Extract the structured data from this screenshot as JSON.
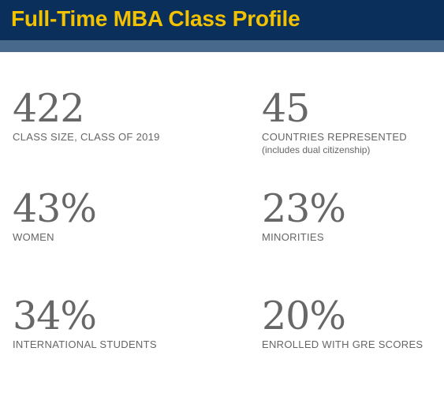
{
  "header": {
    "title": "Full-Time MBA Class Profile"
  },
  "colors": {
    "header_bg": "#0b2f5b",
    "title": "#f2c200",
    "accent_band": "#48688c",
    "stat_text": "#676767"
  },
  "stats": [
    {
      "value": "422",
      "label": "CLASS SIZE, CLASS OF 2019"
    },
    {
      "value": "45",
      "label": "COUNTRIES REPRESENTED",
      "note": "(includes dual citizenship)"
    },
    {
      "value": "43%",
      "label": "WOMEN"
    },
    {
      "value": "23%",
      "label": "MINORITIES"
    },
    {
      "value": "34%",
      "label": "INTERNATIONAL STUDENTS"
    },
    {
      "value": "20%",
      "label": "ENROLLED WITH GRE SCORES"
    }
  ]
}
